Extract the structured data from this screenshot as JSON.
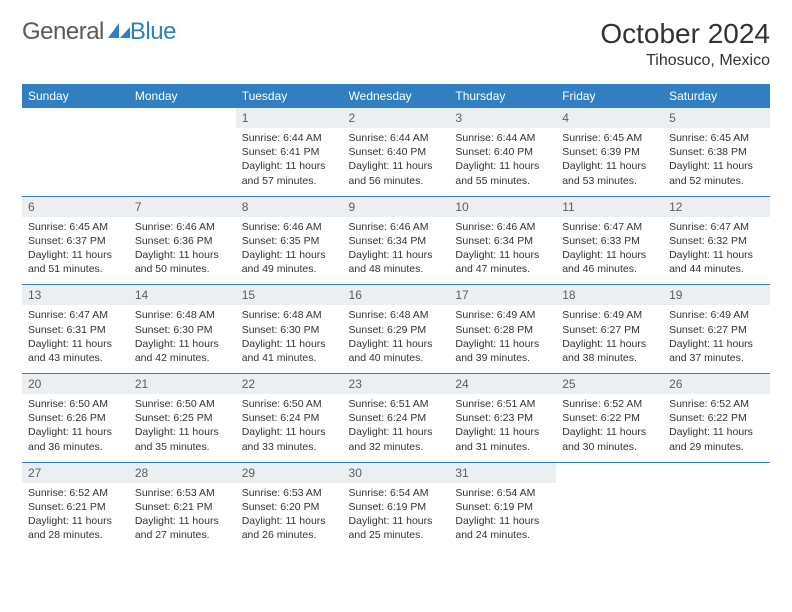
{
  "brand": {
    "part1": "General",
    "part2": "Blue"
  },
  "title": "October 2024",
  "location": "Tihosuco, Mexico",
  "colors": {
    "accent": "#2f7fc1",
    "header_text": "#ffffff",
    "daynum_bg": "#eceff1",
    "text": "#333333",
    "background": "#ffffff"
  },
  "typography": {
    "title_fontsize": 28,
    "location_fontsize": 16,
    "dayheader_fontsize": 12,
    "cell_fontsize": 10.5
  },
  "dayNames": [
    "Sunday",
    "Monday",
    "Tuesday",
    "Wednesday",
    "Thursday",
    "Friday",
    "Saturday"
  ],
  "weeks": [
    [
      null,
      null,
      {
        "n": "1",
        "sunrise": "6:44 AM",
        "sunset": "6:41 PM",
        "dl": "11 hours and 57 minutes."
      },
      {
        "n": "2",
        "sunrise": "6:44 AM",
        "sunset": "6:40 PM",
        "dl": "11 hours and 56 minutes."
      },
      {
        "n": "3",
        "sunrise": "6:44 AM",
        "sunset": "6:40 PM",
        "dl": "11 hours and 55 minutes."
      },
      {
        "n": "4",
        "sunrise": "6:45 AM",
        "sunset": "6:39 PM",
        "dl": "11 hours and 53 minutes."
      },
      {
        "n": "5",
        "sunrise": "6:45 AM",
        "sunset": "6:38 PM",
        "dl": "11 hours and 52 minutes."
      }
    ],
    [
      {
        "n": "6",
        "sunrise": "6:45 AM",
        "sunset": "6:37 PM",
        "dl": "11 hours and 51 minutes."
      },
      {
        "n": "7",
        "sunrise": "6:46 AM",
        "sunset": "6:36 PM",
        "dl": "11 hours and 50 minutes."
      },
      {
        "n": "8",
        "sunrise": "6:46 AM",
        "sunset": "6:35 PM",
        "dl": "11 hours and 49 minutes."
      },
      {
        "n": "9",
        "sunrise": "6:46 AM",
        "sunset": "6:34 PM",
        "dl": "11 hours and 48 minutes."
      },
      {
        "n": "10",
        "sunrise": "6:46 AM",
        "sunset": "6:34 PM",
        "dl": "11 hours and 47 minutes."
      },
      {
        "n": "11",
        "sunrise": "6:47 AM",
        "sunset": "6:33 PM",
        "dl": "11 hours and 46 minutes."
      },
      {
        "n": "12",
        "sunrise": "6:47 AM",
        "sunset": "6:32 PM",
        "dl": "11 hours and 44 minutes."
      }
    ],
    [
      {
        "n": "13",
        "sunrise": "6:47 AM",
        "sunset": "6:31 PM",
        "dl": "11 hours and 43 minutes."
      },
      {
        "n": "14",
        "sunrise": "6:48 AM",
        "sunset": "6:30 PM",
        "dl": "11 hours and 42 minutes."
      },
      {
        "n": "15",
        "sunrise": "6:48 AM",
        "sunset": "6:30 PM",
        "dl": "11 hours and 41 minutes."
      },
      {
        "n": "16",
        "sunrise": "6:48 AM",
        "sunset": "6:29 PM",
        "dl": "11 hours and 40 minutes."
      },
      {
        "n": "17",
        "sunrise": "6:49 AM",
        "sunset": "6:28 PM",
        "dl": "11 hours and 39 minutes."
      },
      {
        "n": "18",
        "sunrise": "6:49 AM",
        "sunset": "6:27 PM",
        "dl": "11 hours and 38 minutes."
      },
      {
        "n": "19",
        "sunrise": "6:49 AM",
        "sunset": "6:27 PM",
        "dl": "11 hours and 37 minutes."
      }
    ],
    [
      {
        "n": "20",
        "sunrise": "6:50 AM",
        "sunset": "6:26 PM",
        "dl": "11 hours and 36 minutes."
      },
      {
        "n": "21",
        "sunrise": "6:50 AM",
        "sunset": "6:25 PM",
        "dl": "11 hours and 35 minutes."
      },
      {
        "n": "22",
        "sunrise": "6:50 AM",
        "sunset": "6:24 PM",
        "dl": "11 hours and 33 minutes."
      },
      {
        "n": "23",
        "sunrise": "6:51 AM",
        "sunset": "6:24 PM",
        "dl": "11 hours and 32 minutes."
      },
      {
        "n": "24",
        "sunrise": "6:51 AM",
        "sunset": "6:23 PM",
        "dl": "11 hours and 31 minutes."
      },
      {
        "n": "25",
        "sunrise": "6:52 AM",
        "sunset": "6:22 PM",
        "dl": "11 hours and 30 minutes."
      },
      {
        "n": "26",
        "sunrise": "6:52 AM",
        "sunset": "6:22 PM",
        "dl": "11 hours and 29 minutes."
      }
    ],
    [
      {
        "n": "27",
        "sunrise": "6:52 AM",
        "sunset": "6:21 PM",
        "dl": "11 hours and 28 minutes."
      },
      {
        "n": "28",
        "sunrise": "6:53 AM",
        "sunset": "6:21 PM",
        "dl": "11 hours and 27 minutes."
      },
      {
        "n": "29",
        "sunrise": "6:53 AM",
        "sunset": "6:20 PM",
        "dl": "11 hours and 26 minutes."
      },
      {
        "n": "30",
        "sunrise": "6:54 AM",
        "sunset": "6:19 PM",
        "dl": "11 hours and 25 minutes."
      },
      {
        "n": "31",
        "sunrise": "6:54 AM",
        "sunset": "6:19 PM",
        "dl": "11 hours and 24 minutes."
      },
      null,
      null
    ]
  ],
  "labels": {
    "sunrise": "Sunrise:",
    "sunset": "Sunset:",
    "daylight": "Daylight:"
  }
}
